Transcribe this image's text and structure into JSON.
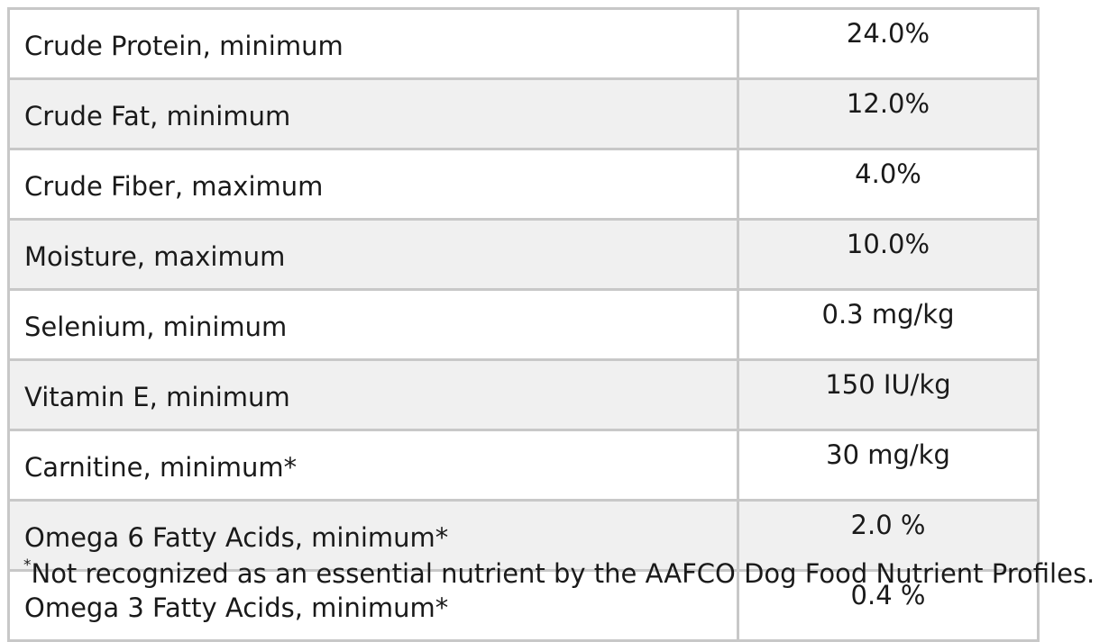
{
  "table": {
    "rows": [
      {
        "nutrient": "Crude Protein, minimum",
        "amount": "24.0%"
      },
      {
        "nutrient": "Crude Fat, minimum",
        "amount": "12.0%"
      },
      {
        "nutrient": "Crude Fiber, maximum",
        "amount": "4.0%"
      },
      {
        "nutrient": "Moisture, maximum",
        "amount": "10.0%"
      },
      {
        "nutrient": "Selenium, minimum",
        "amount": "0.3 mg/kg"
      },
      {
        "nutrient": "Vitamin E, minimum",
        "amount": "150 IU/kg"
      },
      {
        "nutrient": "Carnitine, minimum*",
        "amount": "30 mg/kg"
      },
      {
        "nutrient": "Omega 6 Fatty Acids, minimum*",
        "amount": "2.0 %"
      },
      {
        "nutrient": "Omega 3 Fatty Acids, minimum*",
        "amount": "0.4 %"
      }
    ]
  },
  "footnote": {
    "mark": "*",
    "text": "Not recognized as an essential nutrient by the AAFCO Dog Food Nutrient Profiles."
  },
  "colors": {
    "outer_border": "#000000",
    "inner_border": "#c8c8c8",
    "shaded_row": "#f0f0f0",
    "text": "#1a1a1a"
  }
}
